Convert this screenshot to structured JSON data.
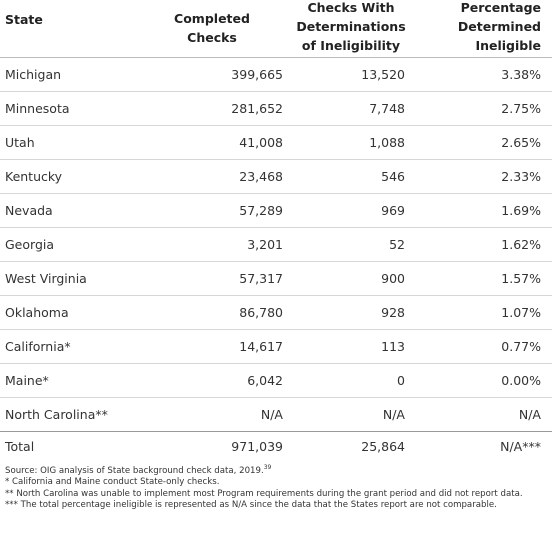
{
  "table": {
    "header": [
      "State",
      "Completed Checks",
      "Checks With Determinations of Ineligibility",
      "Percentage Determined Ineligible"
    ],
    "rows": [
      [
        "Michigan",
        "399,665",
        "13,520",
        "3.38%"
      ],
      [
        "Minnesota",
        "281,652",
        "7,748",
        "2.75%"
      ],
      [
        "Utah",
        "41,008",
        "1,088",
        "2.65%"
      ],
      [
        "Kentucky",
        "23,468",
        "546",
        "2.33%"
      ],
      [
        "Nevada",
        "57,289",
        "969",
        "1.69%"
      ],
      [
        "Georgia",
        "3,201",
        "52",
        "1.62%"
      ],
      [
        "West Virginia",
        "57,317",
        "900",
        "1.57%"
      ],
      [
        "Oklahoma",
        "86,780",
        "928",
        "1.07%"
      ],
      [
        "California*",
        "14,617",
        "113",
        "0.77%"
      ],
      [
        "Maine*",
        "6,042",
        "0",
        "0.00%"
      ],
      [
        "North Carolina**",
        "N/A",
        "N/A",
        "N/A"
      ]
    ],
    "total": [
      "Total",
      "971,039",
      "25,864",
      "N/A***"
    ]
  },
  "notes": {
    "source": "Source: OIG analysis of State background check data, 2019.",
    "source_ref": "39",
    "lines": [
      "* California and Maine conduct State-only checks.",
      "** North Carolina was unable to implement most Program requirements during the grant period and did not report data.",
      "*** The total percentage ineligible is represented as N/A since the data that the States report are not comparable."
    ]
  }
}
